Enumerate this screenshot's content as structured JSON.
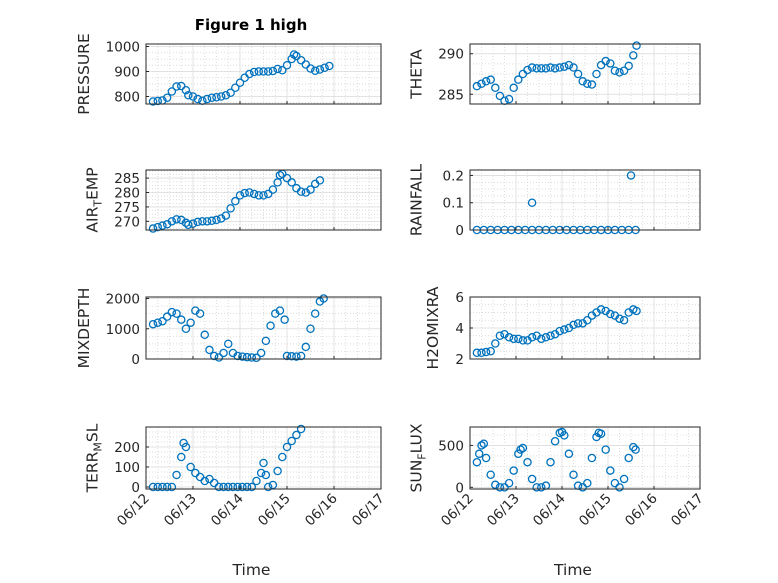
{
  "figure": {
    "title": "Figure 1 high",
    "marker_color": "#0072BD",
    "xlabel": "Time"
  },
  "chart_data": [
    {
      "type": "scatter",
      "name": "PRESSURE",
      "ylabel": "PRESSURE",
      "ylim": [
        770,
        1010
      ],
      "yticks": [
        800,
        900,
        1000
      ],
      "xlim": [
        "06/12",
        "06/17"
      ],
      "xticks": [
        "06/12",
        "06/13",
        "06/14",
        "06/15",
        "06/16",
        "06/17"
      ],
      "grid": true,
      "marker": "open-circle",
      "points": [
        [
          0.15,
          780
        ],
        [
          0.25,
          782
        ],
        [
          0.35,
          784
        ],
        [
          0.45,
          795
        ],
        [
          0.55,
          820
        ],
        [
          0.65,
          840
        ],
        [
          0.75,
          842
        ],
        [
          0.85,
          825
        ],
        [
          0.9,
          805
        ],
        [
          1.0,
          800
        ],
        [
          1.1,
          790
        ],
        [
          1.2,
          783
        ],
        [
          1.3,
          790
        ],
        [
          1.4,
          795
        ],
        [
          1.5,
          797
        ],
        [
          1.6,
          800
        ],
        [
          1.7,
          805
        ],
        [
          1.8,
          815
        ],
        [
          1.9,
          835
        ],
        [
          2.0,
          855
        ],
        [
          2.1,
          875
        ],
        [
          2.2,
          890
        ],
        [
          2.3,
          898
        ],
        [
          2.4,
          900
        ],
        [
          2.5,
          900
        ],
        [
          2.6,
          900
        ],
        [
          2.7,
          902
        ],
        [
          2.8,
          910
        ],
        [
          2.9,
          905
        ],
        [
          3.0,
          925
        ],
        [
          3.1,
          950
        ],
        [
          3.15,
          968
        ],
        [
          3.2,
          962
        ],
        [
          3.3,
          945
        ],
        [
          3.4,
          928
        ],
        [
          3.5,
          912
        ],
        [
          3.6,
          903
        ],
        [
          3.7,
          908
        ],
        [
          3.8,
          915
        ],
        [
          3.9,
          922
        ]
      ]
    },
    {
      "type": "scatter",
      "name": "THETA",
      "ylabel": "THETA",
      "ylim": [
        283.8,
        291.2
      ],
      "yticks": [
        285,
        290
      ],
      "xlim": [
        "06/12",
        "06/17"
      ],
      "xticks": [
        "06/12",
        "06/13",
        "06/14",
        "06/15",
        "06/16",
        "06/17"
      ],
      "grid": true,
      "marker": "open-circle",
      "points": [
        [
          0.15,
          286.0
        ],
        [
          0.25,
          286.3
        ],
        [
          0.35,
          286.6
        ],
        [
          0.45,
          286.8
        ],
        [
          0.55,
          285.8
        ],
        [
          0.65,
          284.8
        ],
        [
          0.75,
          284.2
        ],
        [
          0.85,
          284.4
        ],
        [
          0.95,
          285.8
        ],
        [
          1.05,
          286.8
        ],
        [
          1.15,
          287.5
        ],
        [
          1.25,
          288.0
        ],
        [
          1.35,
          288.3
        ],
        [
          1.45,
          288.2
        ],
        [
          1.55,
          288.2
        ],
        [
          1.65,
          288.2
        ],
        [
          1.75,
          288.3
        ],
        [
          1.85,
          288.2
        ],
        [
          1.95,
          288.3
        ],
        [
          2.05,
          288.4
        ],
        [
          2.15,
          288.6
        ],
        [
          2.25,
          288.3
        ],
        [
          2.35,
          287.5
        ],
        [
          2.45,
          286.6
        ],
        [
          2.55,
          286.3
        ],
        [
          2.65,
          286.2
        ],
        [
          2.75,
          287.5
        ],
        [
          2.85,
          288.6
        ],
        [
          2.95,
          289.1
        ],
        [
          3.05,
          288.8
        ],
        [
          3.15,
          287.9
        ],
        [
          3.25,
          287.7
        ],
        [
          3.35,
          287.9
        ],
        [
          3.45,
          288.5
        ],
        [
          3.55,
          289.8
        ],
        [
          3.62,
          291.0
        ]
      ]
    },
    {
      "type": "scatter",
      "name": "AIR_TEMP",
      "ylabel": "AIR_TEMP",
      "ylim": [
        267,
        287.8
      ],
      "yticks": [
        270,
        275,
        280,
        285
      ],
      "xlim": [
        "06/12",
        "06/17"
      ],
      "xticks": [
        "06/12",
        "06/13",
        "06/14",
        "06/15",
        "06/16",
        "06/17"
      ],
      "grid": true,
      "marker": "open-circle",
      "points": [
        [
          0.15,
          267.5
        ],
        [
          0.25,
          268.0
        ],
        [
          0.35,
          268.5
        ],
        [
          0.45,
          269.0
        ],
        [
          0.55,
          270.0
        ],
        [
          0.65,
          270.7
        ],
        [
          0.75,
          270.5
        ],
        [
          0.85,
          269.5
        ],
        [
          0.9,
          268.8
        ],
        [
          1.0,
          269.2
        ],
        [
          1.1,
          269.8
        ],
        [
          1.2,
          270.0
        ],
        [
          1.3,
          270.0
        ],
        [
          1.4,
          270.2
        ],
        [
          1.5,
          270.5
        ],
        [
          1.6,
          271.0
        ],
        [
          1.7,
          272.0
        ],
        [
          1.8,
          274.5
        ],
        [
          1.9,
          277.0
        ],
        [
          2.0,
          279.0
        ],
        [
          2.1,
          279.8
        ],
        [
          2.2,
          280.0
        ],
        [
          2.3,
          279.5
        ],
        [
          2.4,
          279.0
        ],
        [
          2.5,
          279.0
        ],
        [
          2.6,
          279.5
        ],
        [
          2.7,
          281.0
        ],
        [
          2.8,
          283.5
        ],
        [
          2.85,
          286.0
        ],
        [
          2.9,
          286.5
        ],
        [
          3.0,
          285.0
        ],
        [
          3.1,
          283.5
        ],
        [
          3.2,
          281.5
        ],
        [
          3.3,
          280.3
        ],
        [
          3.4,
          280.0
        ],
        [
          3.5,
          281.0
        ],
        [
          3.6,
          283.0
        ],
        [
          3.7,
          284.2
        ]
      ]
    },
    {
      "type": "scatter",
      "name": "RAINFALL",
      "ylabel": "RAINFALL",
      "ylim": [
        0,
        0.22
      ],
      "yticks": [
        0,
        0.1,
        0.2
      ],
      "xlim": [
        "06/12",
        "06/17"
      ],
      "xticks": [
        "06/12",
        "06/13",
        "06/14",
        "06/15",
        "06/16",
        "06/17"
      ],
      "grid": true,
      "marker": "open-circle",
      "points": [
        [
          0.15,
          0
        ],
        [
          0.3,
          0
        ],
        [
          0.45,
          0
        ],
        [
          0.6,
          0
        ],
        [
          0.75,
          0
        ],
        [
          0.9,
          0
        ],
        [
          1.05,
          0
        ],
        [
          1.2,
          0
        ],
        [
          1.35,
          0
        ],
        [
          1.5,
          0
        ],
        [
          1.65,
          0
        ],
        [
          1.8,
          0
        ],
        [
          1.95,
          0
        ],
        [
          2.1,
          0
        ],
        [
          2.25,
          0
        ],
        [
          2.4,
          0
        ],
        [
          2.55,
          0
        ],
        [
          2.7,
          0
        ],
        [
          2.85,
          0
        ],
        [
          3.0,
          0
        ],
        [
          3.15,
          0
        ],
        [
          3.3,
          0
        ],
        [
          3.45,
          0
        ],
        [
          3.6,
          0
        ],
        [
          1.35,
          0.1
        ],
        [
          3.5,
          0.2
        ]
      ]
    },
    {
      "type": "scatter",
      "name": "MIXDEPTH",
      "ylabel": "MIXDEPTH",
      "ylim": [
        0,
        2050
      ],
      "yticks": [
        0,
        1000,
        2000
      ],
      "xlim": [
        "06/12",
        "06/17"
      ],
      "xticks": [
        "06/12",
        "06/13",
        "06/14",
        "06/15",
        "06/16",
        "06/17"
      ],
      "grid": true,
      "marker": "open-circle",
      "points": [
        [
          0.15,
          1150
        ],
        [
          0.25,
          1200
        ],
        [
          0.35,
          1250
        ],
        [
          0.45,
          1400
        ],
        [
          0.55,
          1550
        ],
        [
          0.65,
          1500
        ],
        [
          0.75,
          1300
        ],
        [
          0.85,
          1000
        ],
        [
          0.95,
          1200
        ],
        [
          1.05,
          1600
        ],
        [
          1.15,
          1500
        ],
        [
          1.25,
          800
        ],
        [
          1.35,
          300
        ],
        [
          1.45,
          100
        ],
        [
          1.55,
          50
        ],
        [
          1.65,
          200
        ],
        [
          1.75,
          500
        ],
        [
          1.85,
          200
        ],
        [
          1.95,
          100
        ],
        [
          2.05,
          80
        ],
        [
          2.15,
          60
        ],
        [
          2.25,
          50
        ],
        [
          2.35,
          40
        ],
        [
          2.45,
          200
        ],
        [
          2.55,
          600
        ],
        [
          2.65,
          1100
        ],
        [
          2.75,
          1500
        ],
        [
          2.85,
          1600
        ],
        [
          2.95,
          1300
        ],
        [
          3.0,
          100
        ],
        [
          3.1,
          90
        ],
        [
          3.2,
          80
        ],
        [
          3.3,
          100
        ],
        [
          3.4,
          400
        ],
        [
          3.5,
          1000
        ],
        [
          3.6,
          1500
        ],
        [
          3.7,
          1900
        ],
        [
          3.78,
          2000
        ]
      ]
    },
    {
      "type": "scatter",
      "name": "H2OMIXRA",
      "ylabel": "H2OMIXRA",
      "ylim": [
        2,
        6
      ],
      "yticks": [
        2,
        4,
        6
      ],
      "xlim": [
        "06/12",
        "06/17"
      ],
      "xticks": [
        "06/12",
        "06/13",
        "06/14",
        "06/15",
        "06/16",
        "06/17"
      ],
      "grid": true,
      "marker": "open-circle",
      "points": [
        [
          0.15,
          2.4
        ],
        [
          0.25,
          2.4
        ],
        [
          0.35,
          2.45
        ],
        [
          0.45,
          2.5
        ],
        [
          0.55,
          3.0
        ],
        [
          0.65,
          3.5
        ],
        [
          0.75,
          3.6
        ],
        [
          0.85,
          3.4
        ],
        [
          0.95,
          3.3
        ],
        [
          1.05,
          3.3
        ],
        [
          1.15,
          3.2
        ],
        [
          1.25,
          3.2
        ],
        [
          1.35,
          3.4
        ],
        [
          1.45,
          3.5
        ],
        [
          1.55,
          3.3
        ],
        [
          1.65,
          3.4
        ],
        [
          1.75,
          3.5
        ],
        [
          1.85,
          3.6
        ],
        [
          1.95,
          3.8
        ],
        [
          2.05,
          3.9
        ],
        [
          2.15,
          4.0
        ],
        [
          2.25,
          4.2
        ],
        [
          2.35,
          4.3
        ],
        [
          2.45,
          4.3
        ],
        [
          2.55,
          4.5
        ],
        [
          2.65,
          4.8
        ],
        [
          2.75,
          5.0
        ],
        [
          2.85,
          5.2
        ],
        [
          2.95,
          5.1
        ],
        [
          3.05,
          4.9
        ],
        [
          3.15,
          4.8
        ],
        [
          3.25,
          4.6
        ],
        [
          3.35,
          4.5
        ],
        [
          3.45,
          5.0
        ],
        [
          3.55,
          5.2
        ],
        [
          3.62,
          5.1
        ]
      ]
    },
    {
      "type": "scatter",
      "name": "TERR_MSL",
      "ylabel": "TERR_MSL",
      "ylim": [
        -10,
        300
      ],
      "yticks": [
        0,
        100,
        200
      ],
      "xlim": [
        "06/12",
        "06/17"
      ],
      "xticks": [
        "06/12",
        "06/13",
        "06/14",
        "06/15",
        "06/16",
        "06/17"
      ],
      "grid": true,
      "marker": "open-circle",
      "points": [
        [
          0.15,
          0
        ],
        [
          0.25,
          0
        ],
        [
          0.35,
          0
        ],
        [
          0.45,
          0
        ],
        [
          0.55,
          0
        ],
        [
          0.65,
          60
        ],
        [
          0.75,
          150
        ],
        [
          0.8,
          220
        ],
        [
          0.85,
          200
        ],
        [
          0.95,
          100
        ],
        [
          1.05,
          70
        ],
        [
          1.15,
          50
        ],
        [
          1.25,
          30
        ],
        [
          1.35,
          40
        ],
        [
          1.45,
          20
        ],
        [
          1.55,
          0
        ],
        [
          1.65,
          0
        ],
        [
          1.75,
          0
        ],
        [
          1.85,
          0
        ],
        [
          1.95,
          0
        ],
        [
          2.05,
          0
        ],
        [
          2.15,
          0
        ],
        [
          2.25,
          0
        ],
        [
          2.35,
          30
        ],
        [
          2.45,
          70
        ],
        [
          2.5,
          120
        ],
        [
          2.55,
          60
        ],
        [
          2.6,
          0
        ],
        [
          2.7,
          10
        ],
        [
          2.8,
          80
        ],
        [
          2.9,
          150
        ],
        [
          3.0,
          200
        ],
        [
          3.1,
          230
        ],
        [
          3.2,
          260
        ],
        [
          3.3,
          290
        ]
      ]
    },
    {
      "type": "scatter",
      "name": "SUN_FLUX",
      "ylabel": "SUN_FLUX",
      "ylim": [
        -20,
        720
      ],
      "yticks": [
        0,
        500
      ],
      "xlim": [
        "06/12",
        "06/17"
      ],
      "xticks": [
        "06/12",
        "06/13",
        "06/14",
        "06/15",
        "06/16",
        "06/17"
      ],
      "grid": true,
      "marker": "open-circle",
      "points": [
        [
          0.15,
          300
        ],
        [
          0.2,
          400
        ],
        [
          0.25,
          500
        ],
        [
          0.3,
          520
        ],
        [
          0.35,
          350
        ],
        [
          0.45,
          150
        ],
        [
          0.55,
          30
        ],
        [
          0.65,
          0
        ],
        [
          0.75,
          0
        ],
        [
          0.85,
          50
        ],
        [
          0.95,
          200
        ],
        [
          1.05,
          400
        ],
        [
          1.1,
          450
        ],
        [
          1.15,
          470
        ],
        [
          1.25,
          300
        ],
        [
          1.35,
          100
        ],
        [
          1.45,
          0
        ],
        [
          1.55,
          0
        ],
        [
          1.65,
          20
        ],
        [
          1.75,
          300
        ],
        [
          1.85,
          550
        ],
        [
          1.95,
          650
        ],
        [
          2.0,
          660
        ],
        [
          2.05,
          620
        ],
        [
          2.15,
          400
        ],
        [
          2.25,
          150
        ],
        [
          2.35,
          20
        ],
        [
          2.45,
          0
        ],
        [
          2.55,
          50
        ],
        [
          2.65,
          350
        ],
        [
          2.75,
          600
        ],
        [
          2.8,
          650
        ],
        [
          2.85,
          640
        ],
        [
          2.95,
          450
        ],
        [
          3.05,
          200
        ],
        [
          3.15,
          50
        ],
        [
          3.25,
          0
        ],
        [
          3.35,
          100
        ],
        [
          3.45,
          350
        ],
        [
          3.55,
          480
        ],
        [
          3.6,
          450
        ]
      ]
    }
  ]
}
